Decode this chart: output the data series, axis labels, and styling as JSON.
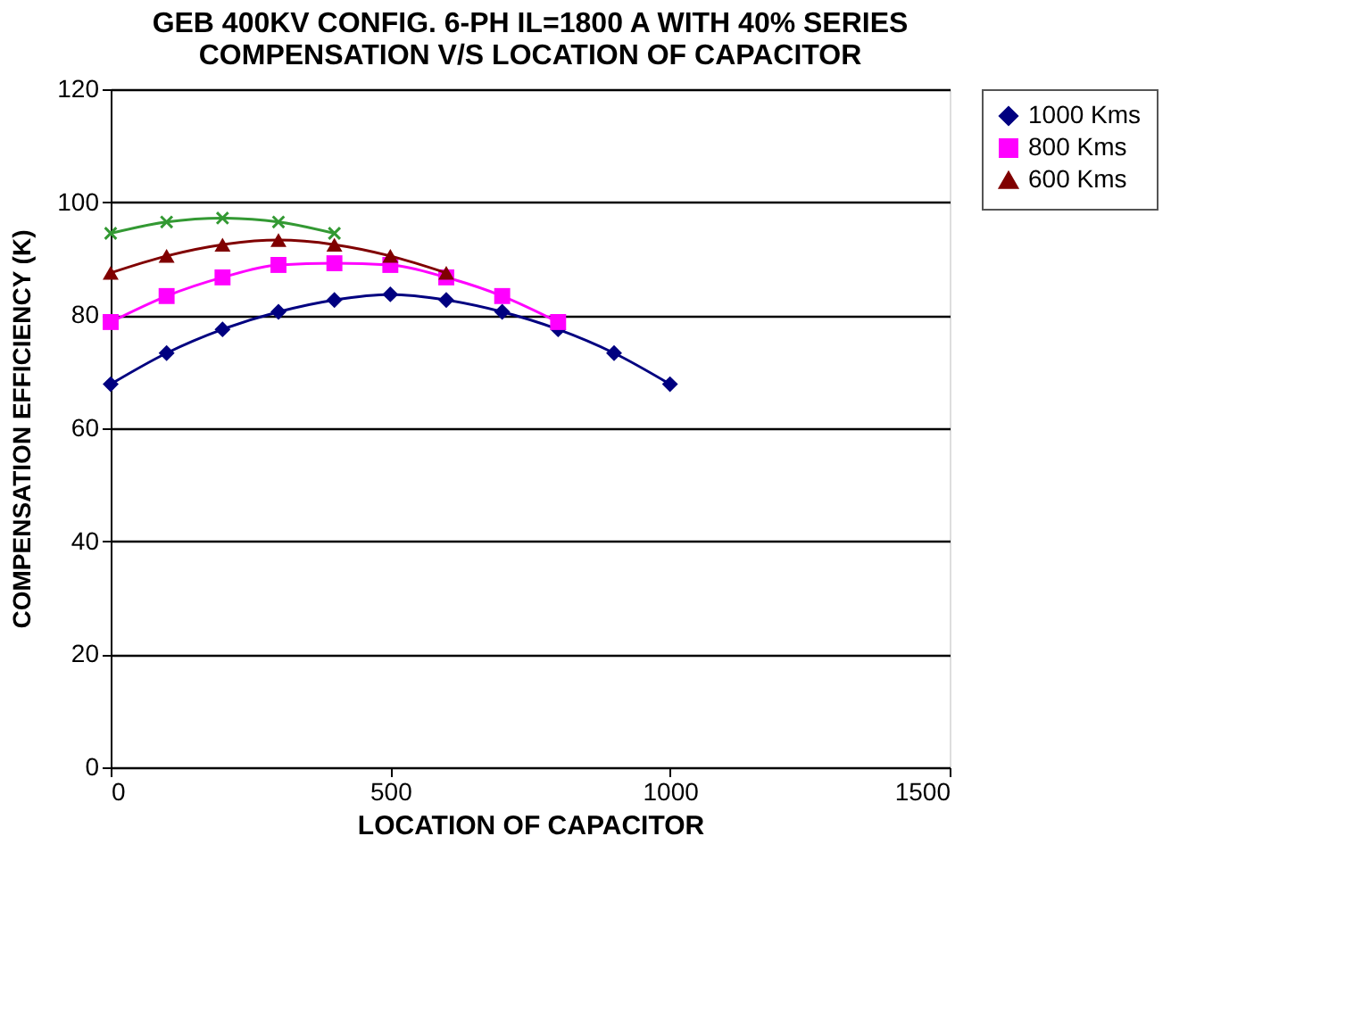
{
  "chart_data": {
    "type": "line",
    "title": "GEB 400KV CONFIG. 6-PH IL=1800 A WITH 40%  SERIES COMPENSATION V/S LOCATION OF CAPACITOR",
    "xlabel": "LOCATION OF CAPACITOR",
    "ylabel": "COMPENSATION EFFICIENCY (K)",
    "xlim": [
      0,
      1500
    ],
    "xticks": [
      0,
      500,
      1000,
      1500
    ],
    "ylim": [
      0,
      120
    ],
    "yticks": [
      0,
      20,
      40,
      60,
      80,
      100,
      120
    ],
    "grid": "y",
    "legend": "right",
    "series": [
      {
        "name": "1000 Kms",
        "color": "#000080",
        "marker": "diamond",
        "x": [
          0,
          100,
          200,
          300,
          400,
          500,
          600,
          700,
          800,
          900,
          1000
        ],
        "values": [
          67.8,
          73.3,
          77.5,
          80.6,
          82.7,
          83.7,
          82.7,
          80.6,
          77.5,
          73.3,
          67.8
        ]
      },
      {
        "name": "800 Kms",
        "color": "#ff00ff",
        "marker": "square",
        "x": [
          0,
          100,
          200,
          300,
          400,
          500,
          600,
          700,
          800
        ],
        "values": [
          78.8,
          83.4,
          86.7,
          88.9,
          89.2,
          88.9,
          86.7,
          83.4,
          78.8
        ]
      },
      {
        "name": "600 Kms",
        "color": "#800000",
        "marker": "triangle",
        "x": [
          0,
          100,
          200,
          300,
          400,
          500,
          600
        ],
        "values": [
          87.5,
          90.5,
          92.5,
          93.3,
          92.5,
          90.5,
          87.5
        ]
      },
      {
        "color": "#339933",
        "marker": "cross",
        "x": [
          0,
          100,
          200,
          300,
          400
        ],
        "values": [
          94.5,
          96.5,
          97.2,
          96.5,
          94.5
        ]
      }
    ]
  }
}
